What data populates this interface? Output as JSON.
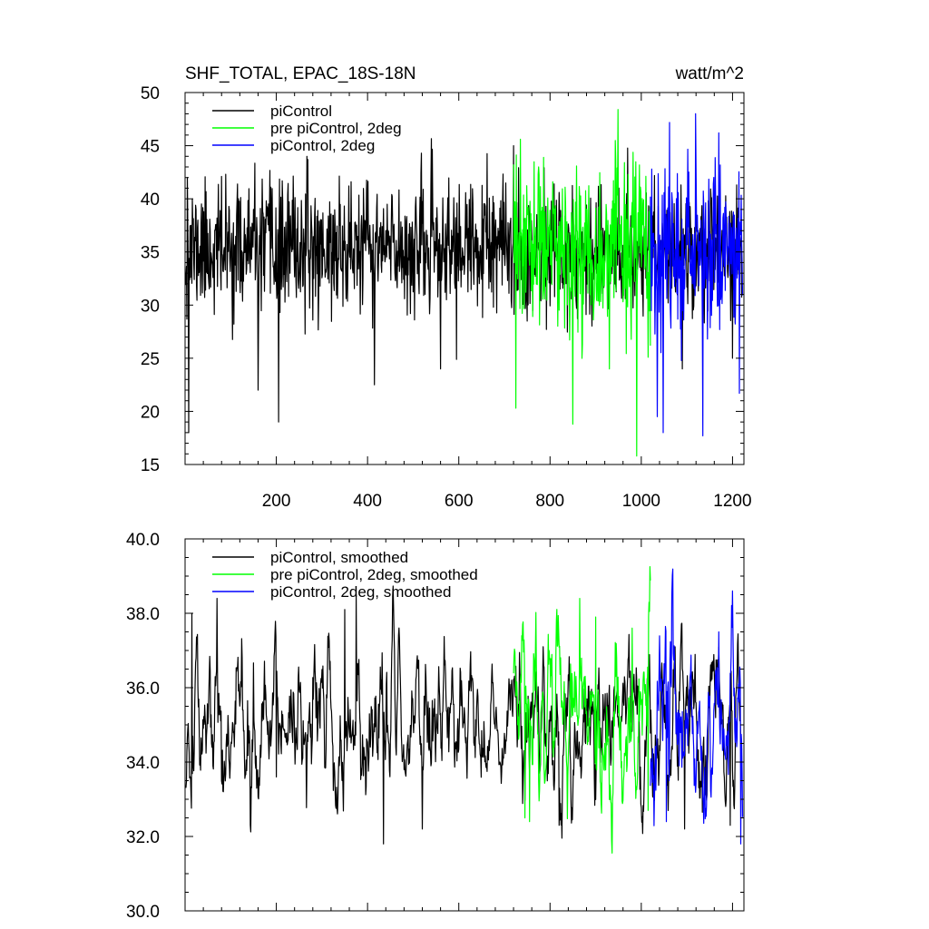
{
  "chart_data": [
    {
      "type": "line",
      "title": "SHF_TOTAL, EPAC_18S-18N",
      "units": "watt/m^2",
      "xlim": [
        0,
        1225
      ],
      "ylim": [
        15,
        50
      ],
      "x_ticks": [
        200,
        400,
        600,
        800,
        1000,
        1200
      ],
      "x_tick_labels": [
        "200",
        "400",
        "600",
        "800",
        "1000",
        "1200"
      ],
      "y_ticks": [
        15,
        20,
        25,
        30,
        35,
        40,
        45,
        50
      ],
      "y_tick_labels": [
        "15",
        "20",
        "25",
        "30",
        "35",
        "40",
        "45",
        "50"
      ],
      "legend_position": "top-left",
      "series": [
        {
          "name": "piControl",
          "color": "#000000",
          "x_range": [
            1,
            1220
          ],
          "mean": 35.3,
          "std": 3.0,
          "seed": 11,
          "smooth": 0,
          "extremes": [
            [
              5,
              42
            ],
            [
              8,
              18
            ],
            [
              160,
              22
            ],
            [
              205,
              19
            ],
            [
              415,
              22.5
            ],
            [
              560,
              24
            ],
            [
              720,
              45
            ],
            [
              990,
              36
            ],
            [
              1090,
              24
            ],
            [
              1200,
              25
            ]
          ]
        },
        {
          "name": "pre piControl, 2deg",
          "color": "#00ff00",
          "x_range": [
            720,
            1020
          ],
          "mean": 35.3,
          "std": 4.0,
          "seed": 23,
          "smooth": 0,
          "extremes": [
            [
              725,
              20.3
            ],
            [
              735,
              45.6
            ],
            [
              775,
              43
            ],
            [
              850,
              18.8
            ],
            [
              930,
              24
            ],
            [
              990,
              15.8
            ]
          ]
        },
        {
          "name": "piControl, 2deg",
          "color": "#0000ff",
          "x_range": [
            1020,
            1222
          ],
          "mean": 35.6,
          "std": 4.0,
          "seed": 37,
          "smooth": 0,
          "extremes": [
            [
              1035,
              19.5
            ],
            [
              1048,
              18
            ],
            [
              1135,
              17.7
            ],
            [
              1170,
              46.2
            ],
            [
              1215,
              21.7
            ]
          ]
        }
      ]
    },
    {
      "type": "line",
      "xlim": [
        0,
        1225
      ],
      "ylim": [
        30,
        40
      ],
      "x_ticks": [
        200,
        400,
        600,
        800,
        1000,
        1200
      ],
      "y_ticks": [
        30,
        32,
        34,
        36,
        38,
        40
      ],
      "y_tick_labels": [
        "30.0",
        "32.0",
        "34.0",
        "36.0",
        "38.0",
        "40.0"
      ],
      "legend_position": "top-left",
      "series": [
        {
          "name": "piControl, smoothed",
          "color": "#000000",
          "x_range": [
            1,
            1220
          ],
          "mean": 35.0,
          "std": 1.05,
          "seed": 41,
          "smooth": 3,
          "extremes": [
            [
              15,
              38.0
            ],
            [
              70,
              38.4
            ],
            [
              200,
              33.6
            ],
            [
              350,
              38.1
            ],
            [
              375,
              38.5
            ],
            [
              435,
              31.8
            ],
            [
              520,
              32.2
            ],
            [
              820,
              32.3
            ],
            [
              1095,
              32.2
            ],
            [
              1195,
              32.3
            ]
          ]
        },
        {
          "name": "pre piControl, 2deg, smoothed",
          "color": "#00ff00",
          "x_range": [
            720,
            1020
          ],
          "mean": 35.3,
          "std": 1.25,
          "seed": 53,
          "smooth": 3,
          "extremes": [
            [
              745,
              32.5
            ],
            [
              755,
              32.4
            ],
            [
              865,
              38.4
            ],
            [
              900,
              37.9
            ],
            [
              980,
              37.6
            ],
            [
              1015,
              32.7
            ]
          ]
        },
        {
          "name": "piControl, 2deg, smoothed",
          "color": "#0000ff",
          "x_range": [
            1020,
            1222
          ],
          "mean": 35.1,
          "std": 1.25,
          "seed": 67,
          "smooth": 3,
          "extremes": [
            [
              1055,
              32.4
            ],
            [
              1170,
              37.5
            ],
            [
              1200,
              38.6
            ],
            [
              1218,
              31.8
            ]
          ]
        }
      ]
    }
  ]
}
